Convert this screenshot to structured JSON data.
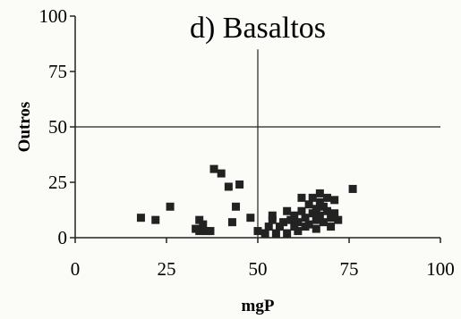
{
  "chart_data": {
    "type": "scatter",
    "title": "d) Basaltos",
    "xlabel": "mgP",
    "ylabel": "Outros",
    "xlim": [
      0,
      100
    ],
    "ylim": [
      0,
      100
    ],
    "x_ticks": [
      "0",
      "25",
      "50",
      "75",
      "100"
    ],
    "y_ticks": [
      "0",
      "25",
      "50",
      "75",
      "100"
    ],
    "reference_lines": {
      "x": 50,
      "y": 50
    },
    "grid": false,
    "marker": "square",
    "marker_color": "#222222",
    "series": [
      {
        "points": [
          [
            18,
            9
          ],
          [
            22,
            8
          ],
          [
            26,
            14
          ],
          [
            33,
            4
          ],
          [
            34,
            3
          ],
          [
            34,
            8
          ],
          [
            35,
            6
          ],
          [
            36,
            3
          ],
          [
            37,
            3
          ],
          [
            38,
            31
          ],
          [
            40,
            29
          ],
          [
            42,
            23
          ],
          [
            43,
            7
          ],
          [
            44,
            14
          ],
          [
            45,
            24
          ],
          [
            48,
            9
          ],
          [
            50,
            3
          ],
          [
            52,
            2
          ],
          [
            53,
            5
          ],
          [
            54,
            8
          ],
          [
            54,
            10
          ],
          [
            55,
            2
          ],
          [
            56,
            5
          ],
          [
            57,
            7
          ],
          [
            58,
            2
          ],
          [
            58,
            12
          ],
          [
            59,
            8
          ],
          [
            60,
            5
          ],
          [
            60,
            10
          ],
          [
            61,
            3
          ],
          [
            61,
            7
          ],
          [
            62,
            12
          ],
          [
            62,
            18
          ],
          [
            63,
            5
          ],
          [
            63,
            9
          ],
          [
            64,
            15
          ],
          [
            64,
            6
          ],
          [
            65,
            18
          ],
          [
            65,
            11
          ],
          [
            66,
            13
          ],
          [
            66,
            8
          ],
          [
            66,
            4
          ],
          [
            67,
            20
          ],
          [
            67,
            16
          ],
          [
            67,
            10
          ],
          [
            68,
            7
          ],
          [
            68,
            14
          ],
          [
            69,
            12
          ],
          [
            69,
            18
          ],
          [
            70,
            9
          ],
          [
            70,
            5
          ],
          [
            71,
            17
          ],
          [
            71,
            11
          ],
          [
            72,
            8
          ],
          [
            76,
            22
          ]
        ]
      }
    ]
  }
}
